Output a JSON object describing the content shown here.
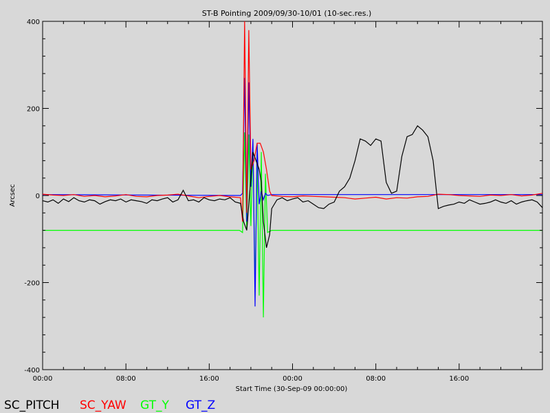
{
  "chart_data": {
    "type": "line",
    "title": "ST-B Pointing 2009/09/30-10/01 (10-sec.res.)",
    "xlabel": "Start Time (30-Sep-09 00:00:00)",
    "ylabel": "Arcsec",
    "x_unit": "hours since start",
    "xlim": [
      0,
      48
    ],
    "ylim": [
      -400,
      400
    ],
    "x_ticks": [
      0,
      8,
      16,
      24,
      32,
      40
    ],
    "x_tick_labels": [
      "00:00",
      "08:00",
      "16:00",
      "00:00",
      "08:00",
      "16:00"
    ],
    "y_ticks": [
      -400,
      -200,
      0,
      200,
      400
    ],
    "y_tick_labels": [
      "-400",
      "-200",
      "0",
      "200",
      "400"
    ],
    "grid": false,
    "legend_position": "bottom-left, below plot",
    "series": [
      {
        "name": "SC_PITCH",
        "color": "#000000",
        "x": [
          0,
          0.5,
          1,
          1.5,
          2,
          2.5,
          3,
          3.5,
          4,
          4.5,
          5,
          5.5,
          6,
          6.5,
          7,
          7.5,
          8,
          8.5,
          9,
          9.5,
          10,
          10.5,
          11,
          11.5,
          12,
          12.5,
          13,
          13.5,
          14,
          14.5,
          15,
          15.5,
          16,
          16.5,
          17,
          17.5,
          18,
          18.5,
          19,
          19.3,
          19.6,
          20,
          20.2,
          20.5,
          20.8,
          21,
          21.2,
          21.5,
          21.8,
          22,
          22.5,
          23,
          23.5,
          24,
          24.5,
          25,
          25.5,
          26,
          26.5,
          27,
          27.5,
          28,
          28.5,
          29,
          29.5,
          30,
          30.5,
          31,
          31.5,
          32,
          32.5,
          33,
          33.5,
          34,
          34.5,
          35,
          35.5,
          36,
          36.5,
          37,
          37.5,
          38,
          38.5,
          39,
          39.5,
          40,
          40.5,
          41,
          41.5,
          42,
          42.5,
          43,
          43.5,
          44,
          44.5,
          45,
          45.5,
          46,
          46.5,
          47,
          47.5,
          48
        ],
        "y": [
          -12,
          -15,
          -10,
          -18,
          -8,
          -14,
          -5,
          -12,
          -15,
          -10,
          -12,
          -20,
          -14,
          -10,
          -12,
          -8,
          -15,
          -10,
          -12,
          -14,
          -18,
          -10,
          -12,
          -8,
          -5,
          -15,
          -10,
          12,
          -12,
          -10,
          -15,
          -5,
          -10,
          -12,
          -8,
          -10,
          -5,
          -15,
          -18,
          -60,
          -80,
          40,
          100,
          80,
          60,
          30,
          -60,
          -120,
          -90,
          -30,
          -10,
          -5,
          -12,
          -8,
          -5,
          -15,
          -12,
          -20,
          -28,
          -30,
          -20,
          -15,
          10,
          20,
          40,
          80,
          130,
          125,
          115,
          130,
          125,
          30,
          5,
          10,
          90,
          135,
          140,
          160,
          150,
          135,
          80,
          -30,
          -25,
          -22,
          -20,
          -15,
          -18,
          -10,
          -15,
          -20,
          -18,
          -15,
          -10,
          -15,
          -18,
          -12,
          -20,
          -15,
          -12,
          -10,
          -15,
          -28
        ]
      },
      {
        "name": "SC_YAW",
        "color": "#ff0000",
        "x": [
          0,
          1,
          2,
          3,
          4,
          5,
          6,
          7,
          8,
          9,
          10,
          11,
          12,
          13,
          14,
          15,
          16,
          17,
          18,
          19,
          19.2,
          19.4,
          19.6,
          19.8,
          20,
          20.3,
          20.6,
          20.9,
          21.2,
          21.5,
          21.8,
          22,
          23,
          24,
          25,
          26,
          27,
          28,
          29,
          30,
          31,
          32,
          33,
          34,
          35,
          36,
          37,
          38,
          39,
          40,
          41,
          42,
          43,
          44,
          45,
          46,
          47,
          48
        ],
        "y": [
          3,
          1,
          0,
          2,
          -2,
          0,
          -3,
          -1,
          2,
          -2,
          -3,
          0,
          1,
          3,
          -1,
          -5,
          -2,
          0,
          -3,
          -5,
          -60,
          400,
          -40,
          380,
          60,
          80,
          120,
          120,
          100,
          60,
          10,
          0,
          -2,
          -3,
          -1,
          -2,
          -3,
          -4,
          -5,
          -8,
          -6,
          -4,
          -8,
          -5,
          -6,
          -3,
          -2,
          3,
          2,
          0,
          -1,
          -2,
          1,
          0,
          2,
          -1,
          1,
          5
        ]
      },
      {
        "name": "GT_Y",
        "color": "#00ff00",
        "x": [
          0,
          18.9,
          19.2,
          19.4,
          19.6,
          19.8,
          20.0,
          20.2,
          20.4,
          20.6,
          20.8,
          21.0,
          21.2,
          21.4,
          21.6,
          22,
          48
        ],
        "y": [
          -80,
          -80,
          -85,
          145,
          -80,
          140,
          -70,
          120,
          -210,
          80,
          -230,
          100,
          -280,
          50,
          -85,
          -80,
          -80
        ]
      },
      {
        "name": "GT_Z",
        "color": "#0000ff",
        "x": [
          0,
          19.0,
          19.2,
          19.4,
          19.6,
          19.8,
          20.0,
          20.2,
          20.4,
          20.6,
          20.8,
          21.0,
          21.2,
          21.4,
          21.6,
          22,
          48
        ],
        "y": [
          2,
          0,
          5,
          270,
          -60,
          260,
          20,
          130,
          -255,
          120,
          -20,
          10,
          -10,
          5,
          0,
          2,
          2
        ]
      }
    ]
  }
}
